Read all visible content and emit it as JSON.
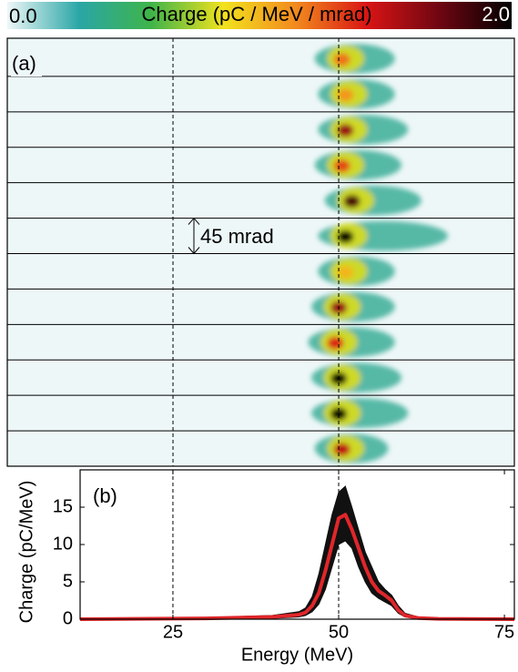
{
  "chart_data": [
    {
      "type": "heatmap",
      "title": "(a)",
      "annotation": "45 mrad",
      "colorbar": {
        "label": "Charge (pC / MeV / mrad)",
        "ticks": [
          {
            "value": 0,
            "label": "0.0"
          },
          {
            "value": 2,
            "label": "2.0"
          }
        ],
        "colors": [
          "#eef7f8",
          "#2aa6a6",
          "#3fb449",
          "#f2e21e",
          "#f28a1e",
          "#d81414",
          "#6e0612",
          "#000000"
        ]
      },
      "xlim": [
        0,
        76.5
      ],
      "vlines": [
        25,
        50
      ],
      "shots": [
        {
          "energy": 50.5,
          "charge": 1.2,
          "tail": 56
        },
        {
          "energy": 51,
          "charge": 1.1,
          "tail": 56
        },
        {
          "energy": 51,
          "charge": 1.6,
          "tail": 58
        },
        {
          "energy": 50.5,
          "charge": 1.3,
          "tail": 57
        },
        {
          "energy": 52,
          "charge": 1.8,
          "tail": 60
        },
        {
          "energy": 51,
          "charge": 2.0,
          "tail": 64
        },
        {
          "energy": 51,
          "charge": 1.0,
          "tail": 56
        },
        {
          "energy": 50,
          "charge": 1.6,
          "tail": 56
        },
        {
          "energy": 49.5,
          "charge": 1.4,
          "tail": 56
        },
        {
          "energy": 50,
          "charge": 2.0,
          "tail": 57
        },
        {
          "energy": 50,
          "charge": 2.0,
          "tail": 58
        },
        {
          "energy": 50.5,
          "charge": 1.5,
          "tail": 55
        }
      ]
    },
    {
      "type": "line",
      "title": "(b)",
      "xlabel": "Energy (MeV)",
      "ylabel": "Charge (pC/MeV)",
      "x": [
        11,
        30,
        40,
        44,
        45,
        46,
        47,
        48,
        49,
        50,
        51,
        52,
        53,
        54,
        55,
        56,
        57,
        58,
        59,
        60,
        62,
        65,
        76.5
      ],
      "series": [
        {
          "color": "#111111",
          "values": [
            0,
            0.2,
            0.5,
            1,
            1.5,
            3,
            6,
            10,
            14,
            17,
            17.8,
            15,
            12,
            9,
            7,
            5,
            4,
            3.2,
            1.8,
            0.8,
            0.3,
            0.1,
            0
          ]
        },
        {
          "color": "#111111",
          "values": [
            0,
            0,
            0.1,
            0.3,
            0.5,
            1,
            2,
            4,
            7,
            10,
            10.5,
            9.5,
            7,
            5,
            3.5,
            2.8,
            2.3,
            1.8,
            0.8,
            0.3,
            0.05,
            0,
            0
          ]
        },
        {
          "color": "#e0262a",
          "values": [
            0,
            0.1,
            0.3,
            0.6,
            0.9,
            1.8,
            3.5,
            6.5,
            10,
            13.5,
            14,
            12,
            9.5,
            7,
            5,
            3.8,
            3.2,
            2.5,
            1.2,
            0.5,
            0.15,
            0.05,
            0
          ]
        }
      ],
      "xlim": [
        11,
        76.5
      ],
      "ylim": [
        0,
        20
      ],
      "xticks": [
        25,
        50,
        75
      ],
      "yticks": [
        0,
        5,
        10,
        15
      ],
      "vlines": [
        25,
        50
      ]
    }
  ]
}
